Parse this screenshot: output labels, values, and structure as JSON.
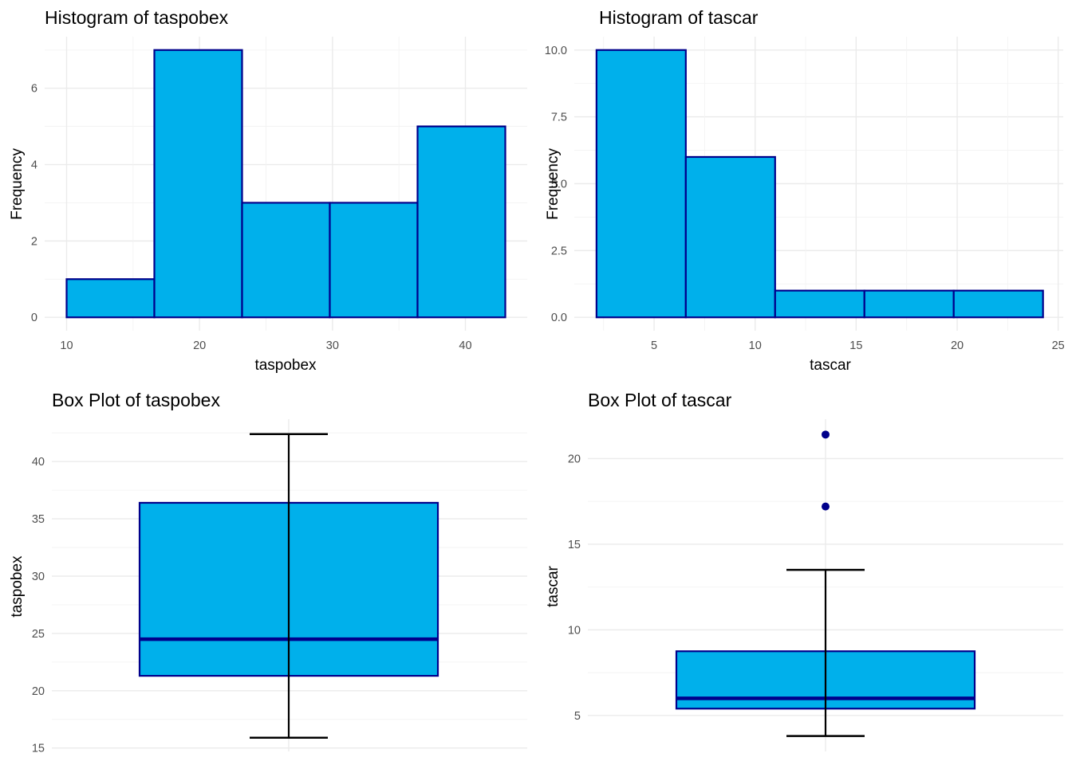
{
  "colors": {
    "fill": "#00b0eb",
    "outline": "#00008b",
    "whisker": "#000000",
    "outlier": "#00008b",
    "grid_major": "#ebebeb",
    "grid_minor": "#f3f3f3",
    "tick_text": "#4d4d4d"
  },
  "chart_data": [
    {
      "id": "hist-taspobex",
      "type": "bar",
      "subtype": "histogram",
      "title": "Histogram of taspobex",
      "xlabel": "taspobex",
      "ylabel": "Frequency",
      "xlim": [
        8.35,
        44.65
      ],
      "ylim": [
        -0.35,
        7.35
      ],
      "x_ticks": [
        10,
        20,
        30,
        40
      ],
      "x_tick_labels": [
        "10",
        "20",
        "30",
        "40"
      ],
      "x_minor": [
        15,
        25,
        35
      ],
      "y_ticks": [
        0,
        2,
        4,
        6
      ],
      "y_tick_labels": [
        "0",
        "2",
        "4",
        "6"
      ],
      "y_minor": [
        1,
        3,
        5,
        7
      ],
      "bins": [
        {
          "x0": 10.0,
          "x1": 16.6,
          "count": 1
        },
        {
          "x0": 16.6,
          "x1": 23.2,
          "count": 7
        },
        {
          "x0": 23.2,
          "x1": 29.8,
          "count": 3
        },
        {
          "x0": 29.8,
          "x1": 36.4,
          "count": 3
        },
        {
          "x0": 36.4,
          "x1": 43.0,
          "count": 5
        }
      ],
      "grid": true
    },
    {
      "id": "hist-tascar",
      "type": "bar",
      "subtype": "histogram",
      "title": "Histogram of tascar",
      "xlabel": "tascar",
      "ylabel": "Frequency",
      "xlim": [
        1.05,
        25.25
      ],
      "ylim": [
        -0.5,
        10.5
      ],
      "x_ticks": [
        5,
        10,
        15,
        20,
        25
      ],
      "x_tick_labels": [
        "5",
        "10",
        "15",
        "20",
        "25"
      ],
      "x_minor": [
        2.5,
        7.5,
        12.5,
        17.5,
        22.5
      ],
      "y_ticks": [
        0,
        2.5,
        5,
        7.5,
        10
      ],
      "y_tick_labels": [
        "0.0",
        "2.5",
        "5.0",
        "7.5",
        "10.0"
      ],
      "y_minor": [
        1.25,
        3.75,
        6.25,
        8.75
      ],
      "bins": [
        {
          "x0": 2.15,
          "x1": 6.57,
          "count": 10
        },
        {
          "x0": 6.57,
          "x1": 10.99,
          "count": 6
        },
        {
          "x0": 10.99,
          "x1": 15.41,
          "count": 1
        },
        {
          "x0": 15.41,
          "x1": 19.83,
          "count": 1
        },
        {
          "x0": 19.83,
          "x1": 24.25,
          "count": 1
        }
      ],
      "grid": true
    },
    {
      "id": "box-taspobex",
      "type": "box",
      "title": "Box Plot of taspobex",
      "xlabel": "",
      "ylabel": "taspobex",
      "ylim": [
        14.7,
        43.7
      ],
      "y_ticks": [
        15,
        20,
        25,
        30,
        35,
        40
      ],
      "y_tick_labels": [
        "15",
        "20",
        "25",
        "30",
        "35",
        "40"
      ],
      "y_minor": [
        17.5,
        22.5,
        27.5,
        32.5,
        37.5,
        42.5
      ],
      "stats": {
        "lower_whisker": 15.9,
        "q1": 21.3,
        "median": 24.5,
        "q3": 36.4,
        "upper_whisker": 42.4
      },
      "outliers": [],
      "grid": true
    },
    {
      "id": "box-tascar",
      "type": "box",
      "title": "Box Plot of tascar",
      "xlabel": "",
      "ylabel": "tascar",
      "ylim": [
        2.9,
        22.3
      ],
      "y_ticks": [
        5,
        10,
        15,
        20
      ],
      "y_tick_labels": [
        "5",
        "10",
        "15",
        "20"
      ],
      "y_minor": [
        7.5,
        12.5,
        17.5
      ],
      "stats": {
        "lower_whisker": 3.8,
        "q1": 5.4,
        "median": 6.0,
        "q3": 8.75,
        "upper_whisker": 13.5
      },
      "outliers": [
        17.2,
        21.4
      ],
      "grid": true
    }
  ]
}
